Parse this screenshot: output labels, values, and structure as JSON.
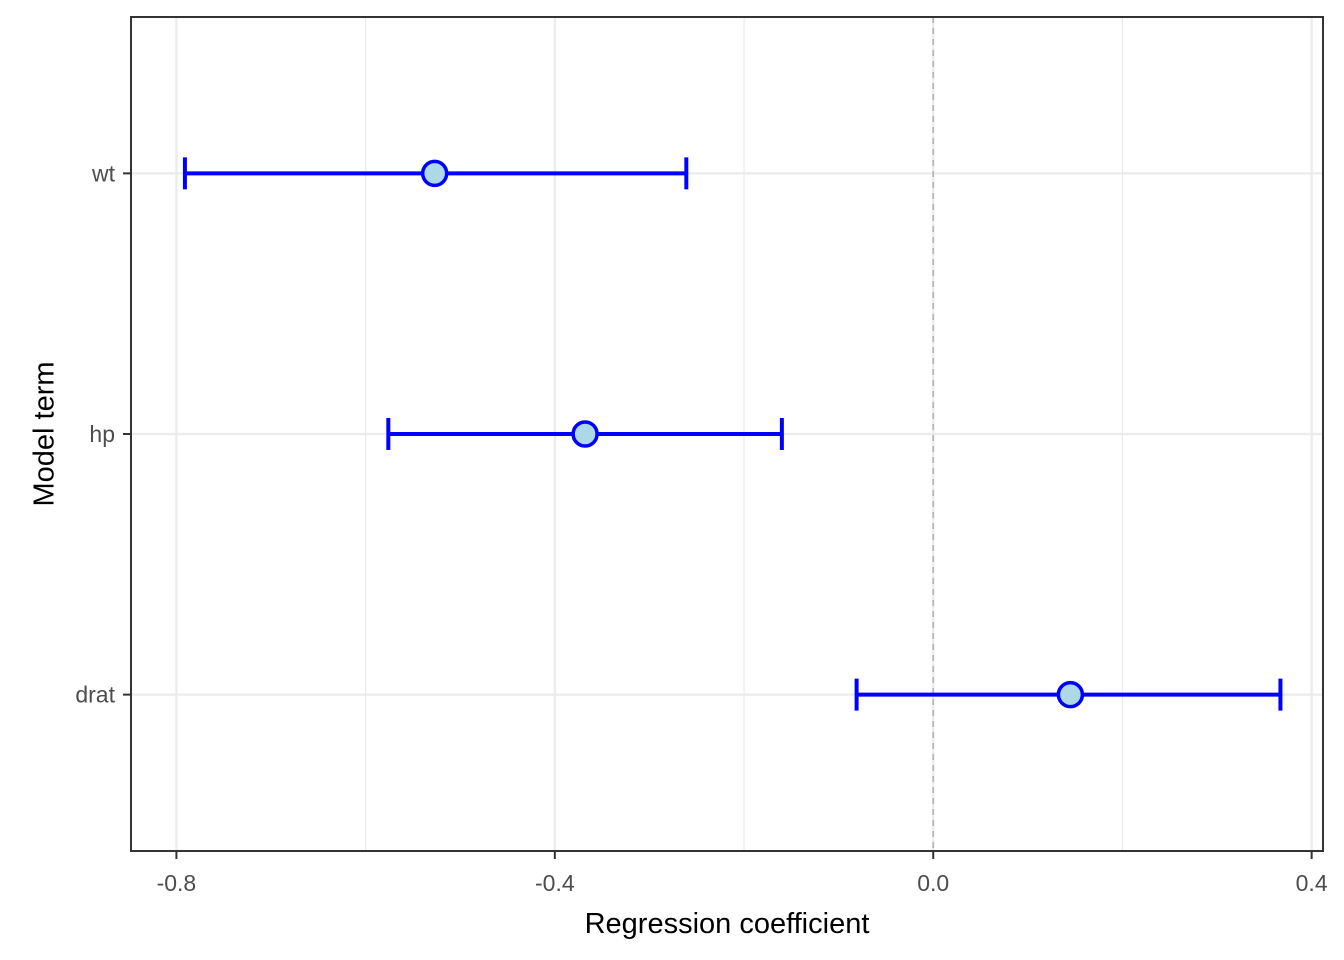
{
  "chart_data": {
    "type": "scatter",
    "subtype": "coefficient-plot-with-error-bars",
    "title": "",
    "xlabel": "Regression coefficient",
    "ylabel": "Model term",
    "xlim": [
      -0.848,
      0.412
    ],
    "x_ticks": [
      -0.8,
      -0.4,
      0.0,
      0.4
    ],
    "x_tick_labels": [
      "-0.8",
      "-0.4",
      "0.0",
      "0.4"
    ],
    "categories": [
      "wt",
      "hp",
      "drat"
    ],
    "estimates": [
      -0.527,
      -0.368,
      0.145
    ],
    "ci_low": [
      -0.791,
      -0.576,
      -0.081
    ],
    "ci_high": [
      -0.261,
      -0.16,
      0.367
    ],
    "reference_line": 0,
    "grid": true,
    "legend": "none",
    "colors": {
      "bar": "#0000ff",
      "point_fill": "#add8e6",
      "point_stroke": "#0000ff",
      "reference": "#b3b3b3",
      "grid": "#ebebeb",
      "panel_border": "#333333"
    }
  }
}
